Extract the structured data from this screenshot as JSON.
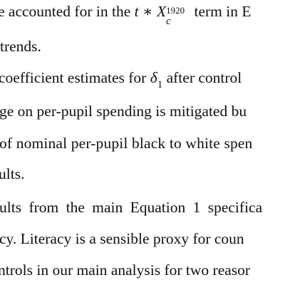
{
  "lines": {
    "l1": {
      "before": "e accounted for in the ",
      "math_t": "t",
      "math_op": " ∗ ",
      "math_X": "X",
      "math_sub": "c",
      "math_sup": "1920",
      "after": " term in E"
    },
    "l2": {
      "text": "trends."
    },
    "l3": {
      "before": "coefficient estimates for ",
      "math_delta": "δ",
      "math_sub": "1",
      "after": " after control"
    },
    "l4": {
      "text": "ge on per-pupil spending is mitigated bu"
    },
    "l5": {
      "text": "of nominal per-pupil black to white spen"
    },
    "l6": {
      "text": "ults."
    },
    "l7": {
      "text": "ults from the main Equation 1 specifica"
    },
    "l8": {
      "text": "cy. Literacy is a sensible proxy for coun"
    },
    "l9": {
      "text": "ntrols in our main analysis for two reasor"
    }
  }
}
